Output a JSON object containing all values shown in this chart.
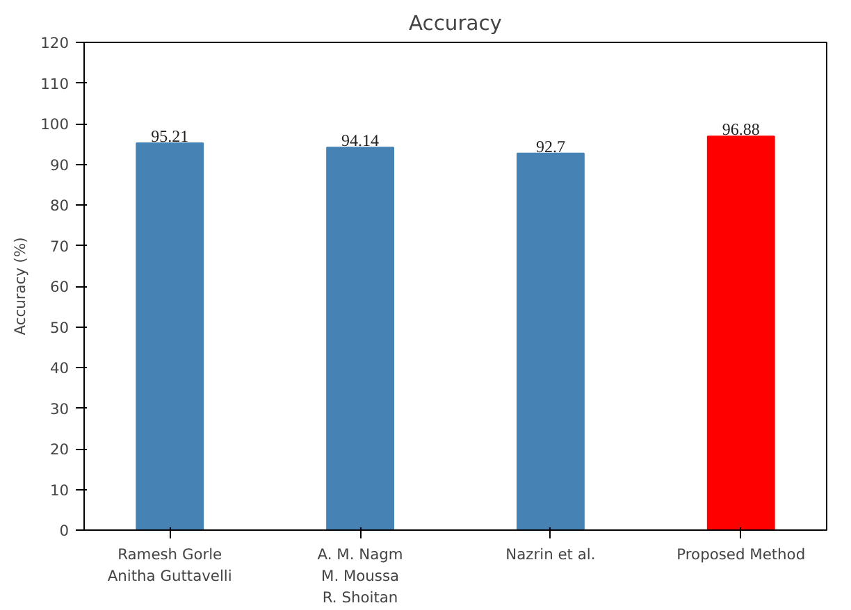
{
  "chart_data": {
    "type": "bar",
    "title": "Accuracy",
    "ylabel": "Accuracy (%)",
    "categories": [
      "Ramesh Gorle\nAnitha Guttavelli",
      "A. M. Nagm\nM. Moussa\nR. Shoitan",
      "Nazrin et al.",
      "Proposed Method"
    ],
    "values": [
      95.21,
      94.14,
      92.7,
      96.88
    ],
    "colors": [
      "#4682b4",
      "#4682b4",
      "#4682b4",
      "#ff0000"
    ],
    "ylim": [
      0,
      120
    ],
    "yticks": [
      0,
      10,
      20,
      30,
      40,
      50,
      60,
      70,
      80,
      90,
      100,
      110,
      120
    ],
    "data_labels": true,
    "grid": false
  }
}
